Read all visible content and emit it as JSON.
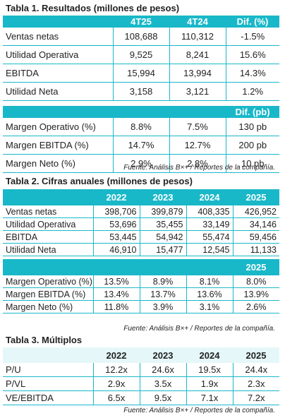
{
  "table1": {
    "title": "Tabla 1. Resultados (millones de pesos)",
    "headers": [
      "",
      "4T25",
      "4T24",
      "Dif. (%)"
    ],
    "rows": [
      [
        "Ventas netas",
        "108,688",
        "110,312",
        "-1.5%"
      ],
      [
        "Utilidad Operativa",
        "9,525",
        "8,241",
        "15.6%"
      ],
      [
        "EBITDA",
        "15,994",
        "13,994",
        "14.3%"
      ],
      [
        "Utilidad Neta",
        "3,158",
        "3,121",
        "1.2%"
      ]
    ],
    "margin_header": "Dif. (pb)",
    "margin_rows": [
      [
        "Margen Operativo (%)",
        "8.8%",
        "7.5%",
        "130 pb"
      ],
      [
        "Margen EBITDA (%)",
        "14.7%",
        "12.7%",
        "200 pb"
      ],
      [
        "Margen Neto (%)",
        "2.9%",
        "2.8%",
        "10 pb"
      ]
    ],
    "source": "Fuente: Análisis B×+ / Reportes de la compañía."
  },
  "table2": {
    "title": "Tabla 2. Cifras anuales (millones de pesos)",
    "headers": [
      "",
      "2022",
      "2023",
      "2024",
      "2025"
    ],
    "rows": [
      [
        "Ventas netas",
        "398,706",
        "399,879",
        "408,335",
        "426,952"
      ],
      [
        "Utilidad Operativa",
        "53,696",
        "35,455",
        "33,149",
        "34,146"
      ],
      [
        "EBITDA",
        "53,445",
        "54,942",
        "55,474",
        "59,456"
      ],
      [
        "Utilidad Neta",
        "46,910",
        "15,477",
        "12,545",
        "11,133"
      ]
    ],
    "margin_header": "2025",
    "margin_rows": [
      [
        "Margen Operativo (%)",
        "13.5%",
        "8.9%",
        "8.1%",
        "8.0%"
      ],
      [
        "Margen EBITDA (%)",
        "13.4%",
        "13.7%",
        "13.6%",
        "13.9%"
      ],
      [
        "Margen Neto (%)",
        "11.8%",
        "3.9%",
        "3.1%",
        "2.6%"
      ]
    ],
    "source": "Fuente: Análisis B×+ / Reportes de la compañía."
  },
  "table3": {
    "title": "Tabla 3. Múltiplos",
    "headers": [
      "",
      "2022",
      "2023",
      "2024",
      "2025"
    ],
    "rows": [
      [
        "P/U",
        "12.2x",
        "24.6x",
        "19.5x",
        "24.4x"
      ],
      [
        "P/VL",
        "2.9x",
        "3.5x",
        "1.9x",
        "2.3x"
      ],
      [
        "VE/EBITDA",
        "6.5x",
        "9.5x",
        "7.1x",
        "7.2x"
      ]
    ],
    "source": "Fuente: Análisis B×+ / Reportes de la compañía."
  },
  "colors": {
    "accent": "#19b8c9",
    "light_header": "#e5f7f9"
  }
}
